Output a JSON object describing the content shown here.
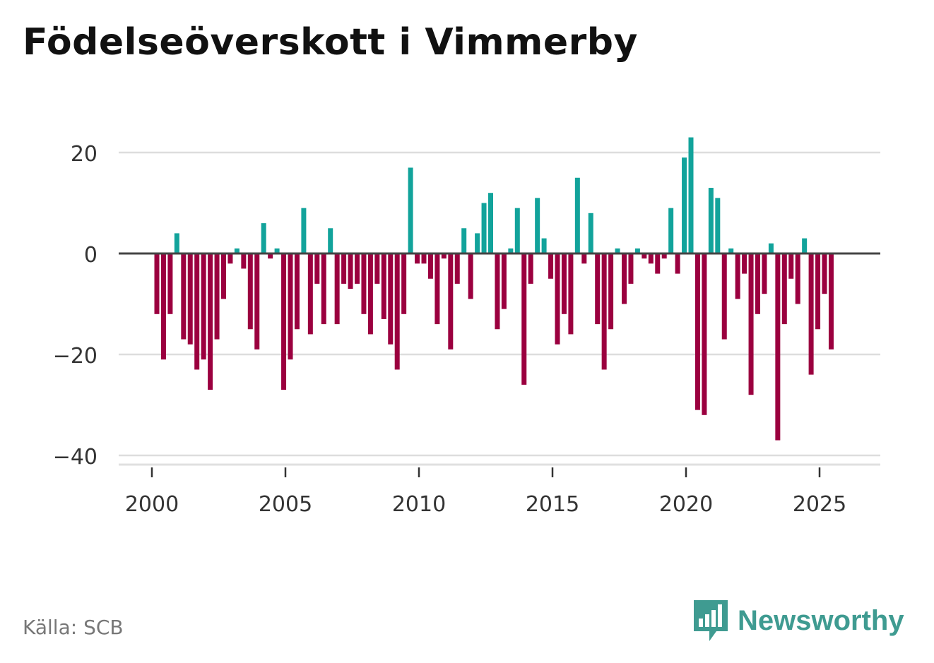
{
  "chart_data": {
    "type": "bar",
    "title": "Födelseöverskott i Vimmerby",
    "source": "Källa: SCB",
    "xlabel": "",
    "ylabel": "",
    "ylim": [
      -40,
      20
    ],
    "y_ticks": [
      20,
      0,
      -20,
      -40
    ],
    "y_tick_labels": [
      "20",
      "0",
      "−20",
      "−40"
    ],
    "x_ticks": [
      2000,
      2005,
      2010,
      2015,
      2020,
      2025
    ],
    "x_tick_labels": [
      "2000",
      "2005",
      "2010",
      "2015",
      "2020",
      "2025"
    ],
    "x_start": 2000.0,
    "period": 0.25,
    "values": [
      -12,
      -21,
      -12,
      4,
      -17,
      -18,
      -23,
      -21,
      -27,
      -17,
      -9,
      -2,
      1,
      -3,
      -15,
      -19,
      6,
      -1,
      1,
      -27,
      -21,
      -15,
      9,
      -16,
      -6,
      -14,
      5,
      -14,
      -6,
      -7,
      -6,
      -12,
      -16,
      -6,
      -13,
      -18,
      -23,
      -12,
      17,
      -2,
      -2,
      -5,
      -14,
      -1,
      -19,
      -6,
      5,
      -9,
      4,
      10,
      12,
      -15,
      -11,
      1,
      9,
      -26,
      -6,
      11,
      3,
      -5,
      -18,
      -12,
      -16,
      15,
      -2,
      8,
      -14,
      -23,
      -15,
      1,
      -10,
      -6,
      1,
      -1,
      -2,
      -4,
      -1,
      9,
      -4,
      19,
      23,
      -31,
      -32,
      13,
      11,
      -17,
      1,
      -9,
      -4,
      -28,
      -12,
      -8,
      2,
      -37,
      -14,
      -5,
      -10,
      3,
      -24,
      -15,
      -8,
      -19
    ],
    "colors": {
      "positive": "#12a39b",
      "negative": "#9b003f",
      "zero_line": "#444444",
      "grid": "#dddddd"
    }
  },
  "brand": {
    "name": "Newsworthy"
  }
}
